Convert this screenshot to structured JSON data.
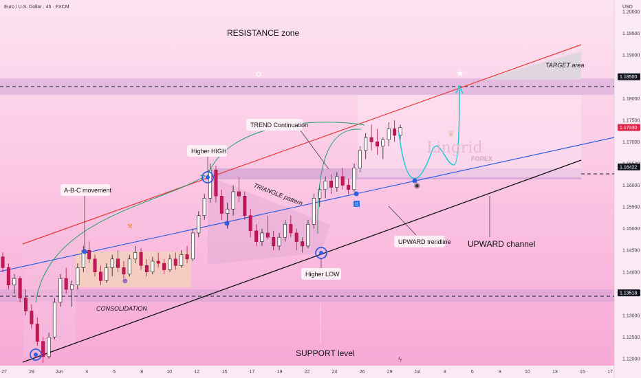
{
  "header": {
    "symbol": "Euro / U.S. Dollar · 4h · FXCM",
    "currency": "USD"
  },
  "chart_data": {
    "type": "candlestick",
    "ylim": [
      1.1175,
      1.2045
    ],
    "y_ticks": [
      1.2,
      1.195,
      1.19,
      1.185,
      1.18,
      1.175,
      1.17,
      1.165,
      1.16,
      1.155,
      1.15,
      1.145,
      1.14,
      1.135,
      1.13,
      1.125,
      1.12
    ],
    "x_ticks": [
      "27",
      "29",
      "Jun",
      "3",
      "5",
      "8",
      "10",
      "12",
      "15",
      "17",
      "19",
      "22",
      "24",
      "26",
      "29",
      "Jul",
      "3",
      "6",
      "8",
      "10",
      "13",
      "15",
      "17"
    ],
    "levels": [
      {
        "price": 1.185,
        "label": "1.18500",
        "color": "#131722"
      },
      {
        "price": 1.1733,
        "label": "1.17330",
        "color": "#e0294a"
      },
      {
        "price": 1.16422,
        "label": "1.16422",
        "color": "#131722"
      },
      {
        "price": 1.13518,
        "label": "1.13518",
        "color": "#131722"
      }
    ],
    "annotations": {
      "resistance_zone": "RESISTANCE zone",
      "target_area": "TARGET area",
      "trend_continuation": "TREND Continuation",
      "higher_high": "Higher HIGH",
      "abc_movement": "A-B-C movement",
      "triangle_pattern": "TRIANGLE pattern",
      "upward_trendline": "UPWARD trendline",
      "upward_channel": "UPWARD channel",
      "higher_low": "Higher LOW",
      "consolidation": "CONSOLIDATION",
      "support_level": "SUPPORT level"
    },
    "watermark": {
      "brand": "Lingrid",
      "sub": "FOREX"
    },
    "candles": [
      [
        1.1435,
        1.1445,
        1.14,
        1.141
      ],
      [
        1.141,
        1.142,
        1.136,
        1.137
      ],
      [
        1.137,
        1.1395,
        1.135,
        1.1385
      ],
      [
        1.1385,
        1.139,
        1.133,
        1.134
      ],
      [
        1.134,
        1.136,
        1.13,
        1.131
      ],
      [
        1.131,
        1.1325,
        1.127,
        1.128
      ],
      [
        1.128,
        1.1295,
        1.123,
        1.124
      ],
      [
        1.124,
        1.125,
        1.119,
        1.1205
      ],
      [
        1.1205,
        1.126,
        1.12,
        1.125
      ],
      [
        1.125,
        1.134,
        1.1245,
        1.133
      ],
      [
        1.133,
        1.1395,
        1.132,
        1.1385
      ],
      [
        1.1385,
        1.141,
        1.135,
        1.136
      ],
      [
        1.136,
        1.138,
        1.132,
        1.137
      ],
      [
        1.137,
        1.142,
        1.136,
        1.141
      ],
      [
        1.141,
        1.146,
        1.14,
        1.145
      ],
      [
        1.145,
        1.147,
        1.142,
        1.143
      ],
      [
        1.143,
        1.144,
        1.139,
        1.14
      ],
      [
        1.14,
        1.1415,
        1.137,
        1.138
      ],
      [
        1.138,
        1.142,
        1.1375,
        1.141
      ],
      [
        1.141,
        1.144,
        1.139,
        1.143
      ],
      [
        1.143,
        1.145,
        1.14,
        1.141
      ],
      [
        1.141,
        1.1425,
        1.1385,
        1.1395
      ],
      [
        1.1395,
        1.144,
        1.139,
        1.143
      ],
      [
        1.143,
        1.146,
        1.142,
        1.1445
      ],
      [
        1.1445,
        1.1455,
        1.1405,
        1.1415
      ],
      [
        1.1415,
        1.143,
        1.139,
        1.14
      ],
      [
        1.14,
        1.1435,
        1.1395,
        1.1425
      ],
      [
        1.1425,
        1.1445,
        1.141,
        1.142
      ],
      [
        1.142,
        1.143,
        1.1395,
        1.1405
      ],
      [
        1.1405,
        1.144,
        1.14,
        1.143
      ],
      [
        1.143,
        1.1445,
        1.1405,
        1.1415
      ],
      [
        1.1415,
        1.145,
        1.141,
        1.144
      ],
      [
        1.144,
        1.146,
        1.142,
        1.143
      ],
      [
        1.143,
        1.15,
        1.1425,
        1.149
      ],
      [
        1.149,
        1.154,
        1.148,
        1.153
      ],
      [
        1.153,
        1.158,
        1.152,
        1.157
      ],
      [
        1.157,
        1.165,
        1.156,
        1.1635
      ],
      [
        1.1635,
        1.1645,
        1.156,
        1.1575
      ],
      [
        1.1575,
        1.159,
        1.152,
        1.1535
      ],
      [
        1.1535,
        1.156,
        1.15,
        1.1545
      ],
      [
        1.1545,
        1.16,
        1.153,
        1.1585
      ],
      [
        1.1585,
        1.162,
        1.156,
        1.1575
      ],
      [
        1.1575,
        1.1585,
        1.152,
        1.153
      ],
      [
        1.153,
        1.1545,
        1.148,
        1.1495
      ],
      [
        1.1495,
        1.151,
        1.146,
        1.147
      ],
      [
        1.147,
        1.15,
        1.146,
        1.149
      ],
      [
        1.149,
        1.153,
        1.1475,
        1.148
      ],
      [
        1.148,
        1.1495,
        1.145,
        1.146
      ],
      [
        1.146,
        1.149,
        1.145,
        1.148
      ],
      [
        1.148,
        1.152,
        1.147,
        1.151
      ],
      [
        1.151,
        1.153,
        1.148,
        1.149
      ],
      [
        1.149,
        1.15,
        1.145,
        1.147
      ],
      [
        1.147,
        1.148,
        1.1445,
        1.146
      ],
      [
        1.146,
        1.152,
        1.1455,
        1.151
      ],
      [
        1.151,
        1.158,
        1.15,
        1.157
      ],
      [
        1.157,
        1.16,
        1.155,
        1.159
      ],
      [
        1.159,
        1.162,
        1.157,
        1.161
      ],
      [
        1.161,
        1.1625,
        1.158,
        1.1595
      ],
      [
        1.1595,
        1.163,
        1.1585,
        1.162
      ],
      [
        1.162,
        1.164,
        1.159,
        1.16
      ],
      [
        1.16,
        1.1615,
        1.158,
        1.159
      ],
      [
        1.159,
        1.165,
        1.1585,
        1.164
      ],
      [
        1.164,
        1.169,
        1.163,
        1.168
      ],
      [
        1.168,
        1.172,
        1.166,
        1.171
      ],
      [
        1.171,
        1.174,
        1.168,
        1.17
      ],
      [
        1.17,
        1.173,
        1.167,
        1.169
      ],
      [
        1.169,
        1.171,
        1.166,
        1.1705
      ],
      [
        1.1705,
        1.1745,
        1.169,
        1.173
      ],
      [
        1.173,
        1.175,
        1.17,
        1.1715
      ],
      [
        1.1715,
        1.174,
        1.1705,
        1.1733
      ]
    ]
  }
}
